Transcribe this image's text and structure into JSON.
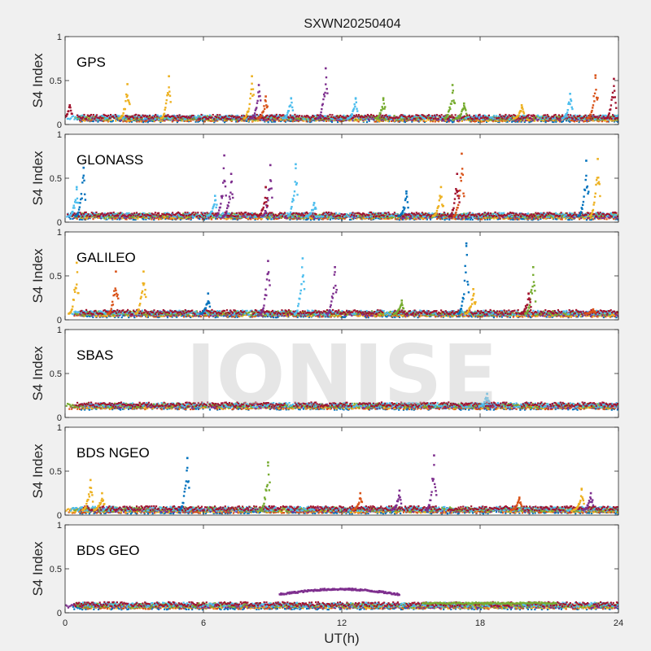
{
  "figure_title": "SXWN20250404",
  "watermark": "IONISE",
  "chart_data": {
    "type": "scatter",
    "title": "SXWN20250404",
    "xlabel": "UT(h)",
    "ylabel": "S4 Index",
    "xlim": [
      0,
      24
    ],
    "ylim": [
      0,
      1
    ],
    "xticks": [
      0,
      6,
      12,
      18,
      24
    ],
    "yticks": [
      0,
      0.5,
      1
    ],
    "ytick_labels": [
      "0",
      "0.5",
      "1"
    ],
    "grid": false,
    "series_colors": [
      "#0072BD",
      "#D95319",
      "#EDB120",
      "#7E2F8E",
      "#77AC30",
      "#4DBEEE",
      "#A2142F"
    ],
    "panels": [
      {
        "label": "GPS",
        "baseline": 0.07,
        "spikes": [
          {
            "x": 2.7,
            "y": 0.46,
            "s": 2
          },
          {
            "x": 4.5,
            "y": 0.55,
            "s": 2
          },
          {
            "x": 8.1,
            "y": 0.55,
            "s": 2
          },
          {
            "x": 8.4,
            "y": 0.45,
            "s": 3
          },
          {
            "x": 8.7,
            "y": 0.32,
            "s": 1
          },
          {
            "x": 9.8,
            "y": 0.3,
            "s": 5
          },
          {
            "x": 11.3,
            "y": 0.64,
            "s": 3
          },
          {
            "x": 12.6,
            "y": 0.3,
            "s": 5
          },
          {
            "x": 13.8,
            "y": 0.3,
            "s": 4
          },
          {
            "x": 16.8,
            "y": 0.45,
            "s": 4
          },
          {
            "x": 17.3,
            "y": 0.24,
            "s": 4
          },
          {
            "x": 19.8,
            "y": 0.22,
            "s": 2
          },
          {
            "x": 21.9,
            "y": 0.35,
            "s": 5
          },
          {
            "x": 23.0,
            "y": 0.56,
            "s": 1
          },
          {
            "x": 23.8,
            "y": 0.52,
            "s": 6
          },
          {
            "x": 0.2,
            "y": 0.22,
            "s": 6
          }
        ]
      },
      {
        "label": "GLONASS",
        "baseline": 0.07,
        "spikes": [
          {
            "x": 0.8,
            "y": 0.62,
            "s": 0
          },
          {
            "x": 0.5,
            "y": 0.4,
            "s": 5
          },
          {
            "x": 6.9,
            "y": 0.76,
            "s": 3
          },
          {
            "x": 7.2,
            "y": 0.55,
            "s": 3
          },
          {
            "x": 8.9,
            "y": 0.65,
            "s": 3
          },
          {
            "x": 8.7,
            "y": 0.4,
            "s": 6
          },
          {
            "x": 10.0,
            "y": 0.66,
            "s": 5
          },
          {
            "x": 14.8,
            "y": 0.35,
            "s": 0
          },
          {
            "x": 16.3,
            "y": 0.4,
            "s": 2
          },
          {
            "x": 17.2,
            "y": 0.78,
            "s": 1
          },
          {
            "x": 17.0,
            "y": 0.55,
            "s": 6
          },
          {
            "x": 22.6,
            "y": 0.7,
            "s": 0
          },
          {
            "x": 23.1,
            "y": 0.72,
            "s": 2
          },
          {
            "x": 6.5,
            "y": 0.3,
            "s": 5
          },
          {
            "x": 10.8,
            "y": 0.22,
            "s": 5
          }
        ]
      },
      {
        "label": "GALILEO",
        "baseline": 0.07,
        "spikes": [
          {
            "x": 0.5,
            "y": 0.65,
            "s": 2
          },
          {
            "x": 2.2,
            "y": 0.55,
            "s": 1
          },
          {
            "x": 3.4,
            "y": 0.55,
            "s": 2
          },
          {
            "x": 6.2,
            "y": 0.3,
            "s": 0
          },
          {
            "x": 8.8,
            "y": 0.67,
            "s": 3
          },
          {
            "x": 10.3,
            "y": 0.7,
            "s": 5
          },
          {
            "x": 11.7,
            "y": 0.6,
            "s": 3
          },
          {
            "x": 17.4,
            "y": 0.87,
            "s": 0
          },
          {
            "x": 17.7,
            "y": 0.35,
            "s": 2
          },
          {
            "x": 20.3,
            "y": 0.6,
            "s": 4
          },
          {
            "x": 20.1,
            "y": 0.3,
            "s": 6
          },
          {
            "x": 14.6,
            "y": 0.22,
            "s": 4
          },
          {
            "x": 22.9,
            "y": 0.12,
            "s": 1
          }
        ]
      },
      {
        "label": "SBAS",
        "baseline": 0.13,
        "spikes": [
          {
            "x": 18.3,
            "y": 0.27,
            "s": 5
          }
        ]
      },
      {
        "label": "BDS NGEO",
        "baseline": 0.06,
        "spikes": [
          {
            "x": 1.1,
            "y": 0.4,
            "s": 2
          },
          {
            "x": 1.6,
            "y": 0.25,
            "s": 2
          },
          {
            "x": 5.3,
            "y": 0.65,
            "s": 0
          },
          {
            "x": 8.8,
            "y": 0.6,
            "s": 4
          },
          {
            "x": 12.8,
            "y": 0.25,
            "s": 1
          },
          {
            "x": 14.5,
            "y": 0.28,
            "s": 3
          },
          {
            "x": 16.0,
            "y": 0.68,
            "s": 3
          },
          {
            "x": 22.4,
            "y": 0.3,
            "s": 2
          },
          {
            "x": 22.8,
            "y": 0.25,
            "s": 3
          },
          {
            "x": 19.7,
            "y": 0.2,
            "s": 1
          }
        ]
      },
      {
        "label": "BDS GEO",
        "baseline": 0.08,
        "spikes": []
      }
    ]
  }
}
